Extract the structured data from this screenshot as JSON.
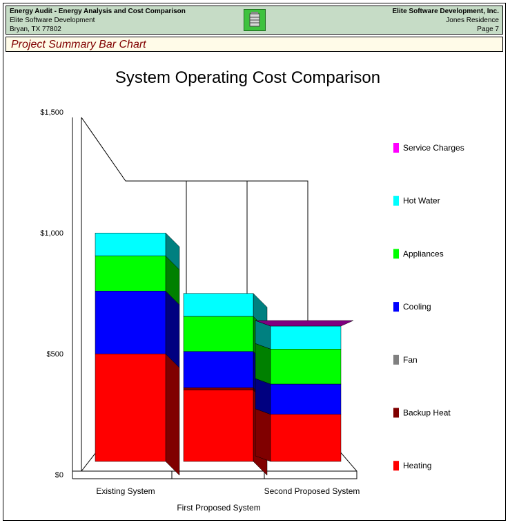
{
  "header": {
    "app_title": "Energy Audit - Energy Analysis and Cost Comparison",
    "company_left": "Elite Software Development",
    "city": "Bryan, TX 77802",
    "company_right": "Elite Software Development, Inc.",
    "project": "Jones Residence",
    "page": "Page 7"
  },
  "section_title": "Project Summary Bar Chart",
  "chart_data": {
    "type": "bar",
    "stacked": true,
    "three_d": true,
    "title": "System Operating Cost Comparison",
    "categories": [
      "Existing System",
      "First Proposed System",
      "Second Proposed System"
    ],
    "y_ticks": [
      "$1,500",
      "$1,000",
      "$500",
      "$0"
    ],
    "ylim": [
      0,
      1500
    ],
    "legend_position": "right",
    "series": [
      {
        "name": "Heating",
        "color": "#ff0000",
        "values": [
          445,
          295,
          195
        ]
      },
      {
        "name": "Backup Heat",
        "color": "#800000",
        "values": [
          0,
          10,
          0
        ]
      },
      {
        "name": "Fan",
        "color": "#808080",
        "values": [
          0,
          0,
          0
        ]
      },
      {
        "name": "Cooling",
        "color": "#0000ff",
        "values": [
          260,
          150,
          125
        ]
      },
      {
        "name": "Appliances",
        "color": "#00ff00",
        "values": [
          145,
          145,
          145
        ]
      },
      {
        "name": "Hot Water",
        "color": "#00ffff",
        "values": [
          95,
          95,
          95
        ]
      },
      {
        "name": "Service Charges",
        "color": "#ff00ff",
        "values": [
          0,
          0,
          0
        ]
      }
    ]
  }
}
